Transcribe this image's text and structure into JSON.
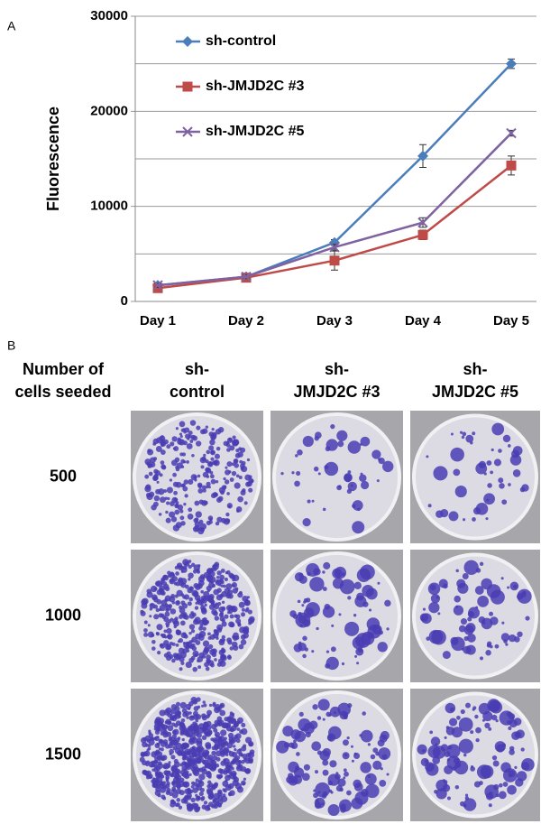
{
  "panels": {
    "a": "A",
    "b": "B"
  },
  "chart_data": {
    "type": "line",
    "y_label": "Fluorescence",
    "categories": [
      "Day 1",
      "Day 2",
      "Day 3",
      "Day 4",
      "Day 5"
    ],
    "series": [
      {
        "name": "sh-control",
        "color": "#4a7ebb",
        "marker": "diamond",
        "values": [
          1700,
          2600,
          6200,
          15300,
          25000
        ],
        "errors": [
          200,
          200,
          300,
          1200,
          500
        ]
      },
      {
        "name": "sh-JMJD2C #3",
        "color": "#be4b48",
        "marker": "square",
        "values": [
          1400,
          2500,
          4300,
          7000,
          14300
        ],
        "errors": [
          200,
          200,
          1000,
          500,
          1000
        ]
      },
      {
        "name": "sh-JMJD2C #5",
        "color": "#7e62a1",
        "marker": "x",
        "values": [
          1700,
          2600,
          5700,
          8300,
          17700
        ],
        "errors": [
          200,
          200,
          300,
          500,
          300
        ]
      }
    ],
    "ylim": [
      0,
      30000
    ],
    "yticks": [
      0,
      10000,
      20000,
      30000
    ],
    "yminorticks": [
      5000,
      15000,
      25000
    ],
    "grid": true,
    "legend": "upper-left"
  },
  "colony_table": {
    "row_header": [
      "Number of",
      "cells seeded"
    ],
    "column_headers": [
      [
        "sh-",
        "control"
      ],
      [
        "sh-",
        "JMJD2C #3"
      ],
      [
        "sh-",
        "JMJD2C #5"
      ]
    ],
    "rows": [
      "500",
      "1000",
      "1500"
    ]
  }
}
